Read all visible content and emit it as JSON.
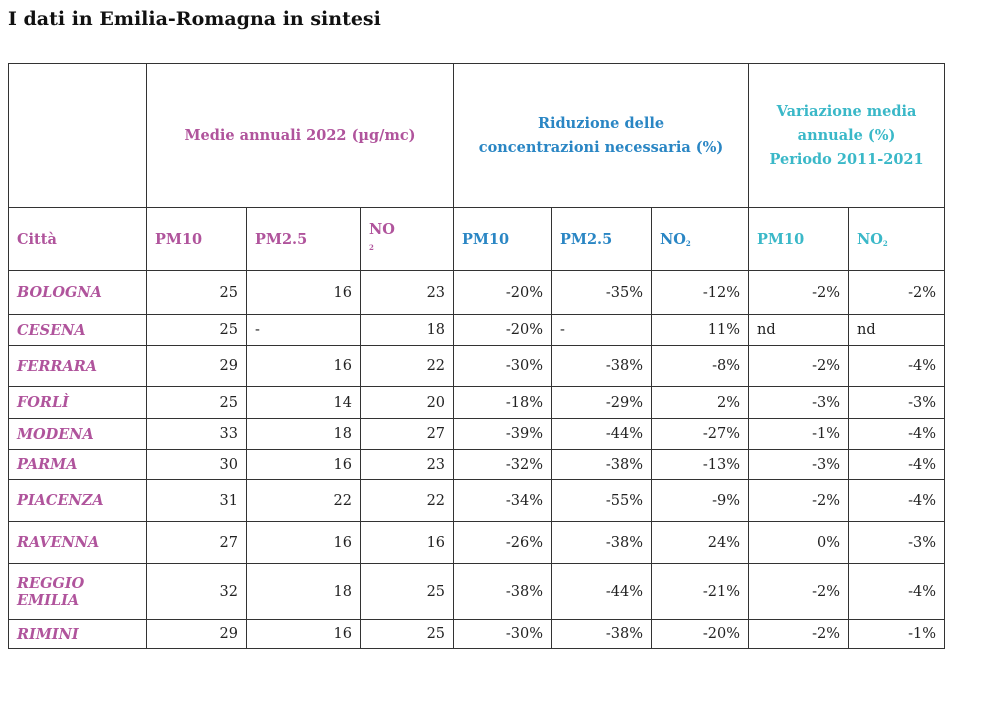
{
  "title": "I dati in Emilia-Romagna in sintesi",
  "groups": {
    "medie": "Medie annuali 2022 (µg/mc)",
    "riduzione": [
      "Riduzione delle",
      "concentrazioni necessaria (%)"
    ],
    "variazione": [
      "Variazione media",
      "annuale (%)",
      "Periodo 2011-2021"
    ]
  },
  "subheaders": {
    "citta": "Città",
    "pm10": "PM10",
    "pm25": "PM2.5",
    "no": "NO",
    "sub2": "2",
    "red_pm10": "PM10",
    "red_pm25": "PM2.5",
    "red_no": "NO",
    "var_pm10": "PM10",
    "var_no": "NO"
  },
  "colors": {
    "mauve": "#b0549c",
    "blue": "#2a86c4",
    "teal": "#3ab8c8"
  },
  "rows": [
    {
      "city": "BOLOGNA",
      "v": [
        "25",
        "16",
        "23",
        "-20%",
        "-35%",
        "-12%",
        "-2%",
        "-2%"
      ]
    },
    {
      "city": "CESENA",
      "v": [
        "25",
        "-",
        "18",
        "-20%",
        "-",
        "11%",
        "nd",
        "nd"
      ]
    },
    {
      "city": "FERRARA",
      "v": [
        "29",
        "16",
        "22",
        "-30%",
        "-38%",
        "-8%",
        "-2%",
        "-4%"
      ]
    },
    {
      "city": "FORLÌ",
      "v": [
        "25",
        "14",
        "20",
        "-18%",
        "-29%",
        "2%",
        "-3%",
        "-3%"
      ]
    },
    {
      "city": "MODENA",
      "v": [
        "33",
        "18",
        "27",
        "-39%",
        "-44%",
        "-27%",
        "-1%",
        "-4%"
      ]
    },
    {
      "city": "PARMA",
      "v": [
        "30",
        "16",
        "23",
        "-32%",
        "-38%",
        "-13%",
        "-3%",
        "-4%"
      ]
    },
    {
      "city": "PIACENZA",
      "v": [
        "31",
        "22",
        "22",
        "-34%",
        "-55%",
        "-9%",
        "-2%",
        "-4%"
      ]
    },
    {
      "city": "RAVENNA",
      "v": [
        "27",
        "16",
        "16",
        "-26%",
        "-38%",
        "24%",
        "0%",
        "-3%"
      ]
    },
    {
      "city": "REGGIO EMILIA",
      "v": [
        "32",
        "18",
        "25",
        "-38%",
        "-44%",
        "-21%",
        "-2%",
        "-4%"
      ]
    },
    {
      "city": "RIMINI",
      "v": [
        "29",
        "16",
        "25",
        "-30%",
        "-38%",
        "-20%",
        "-2%",
        "-1%"
      ]
    }
  ]
}
